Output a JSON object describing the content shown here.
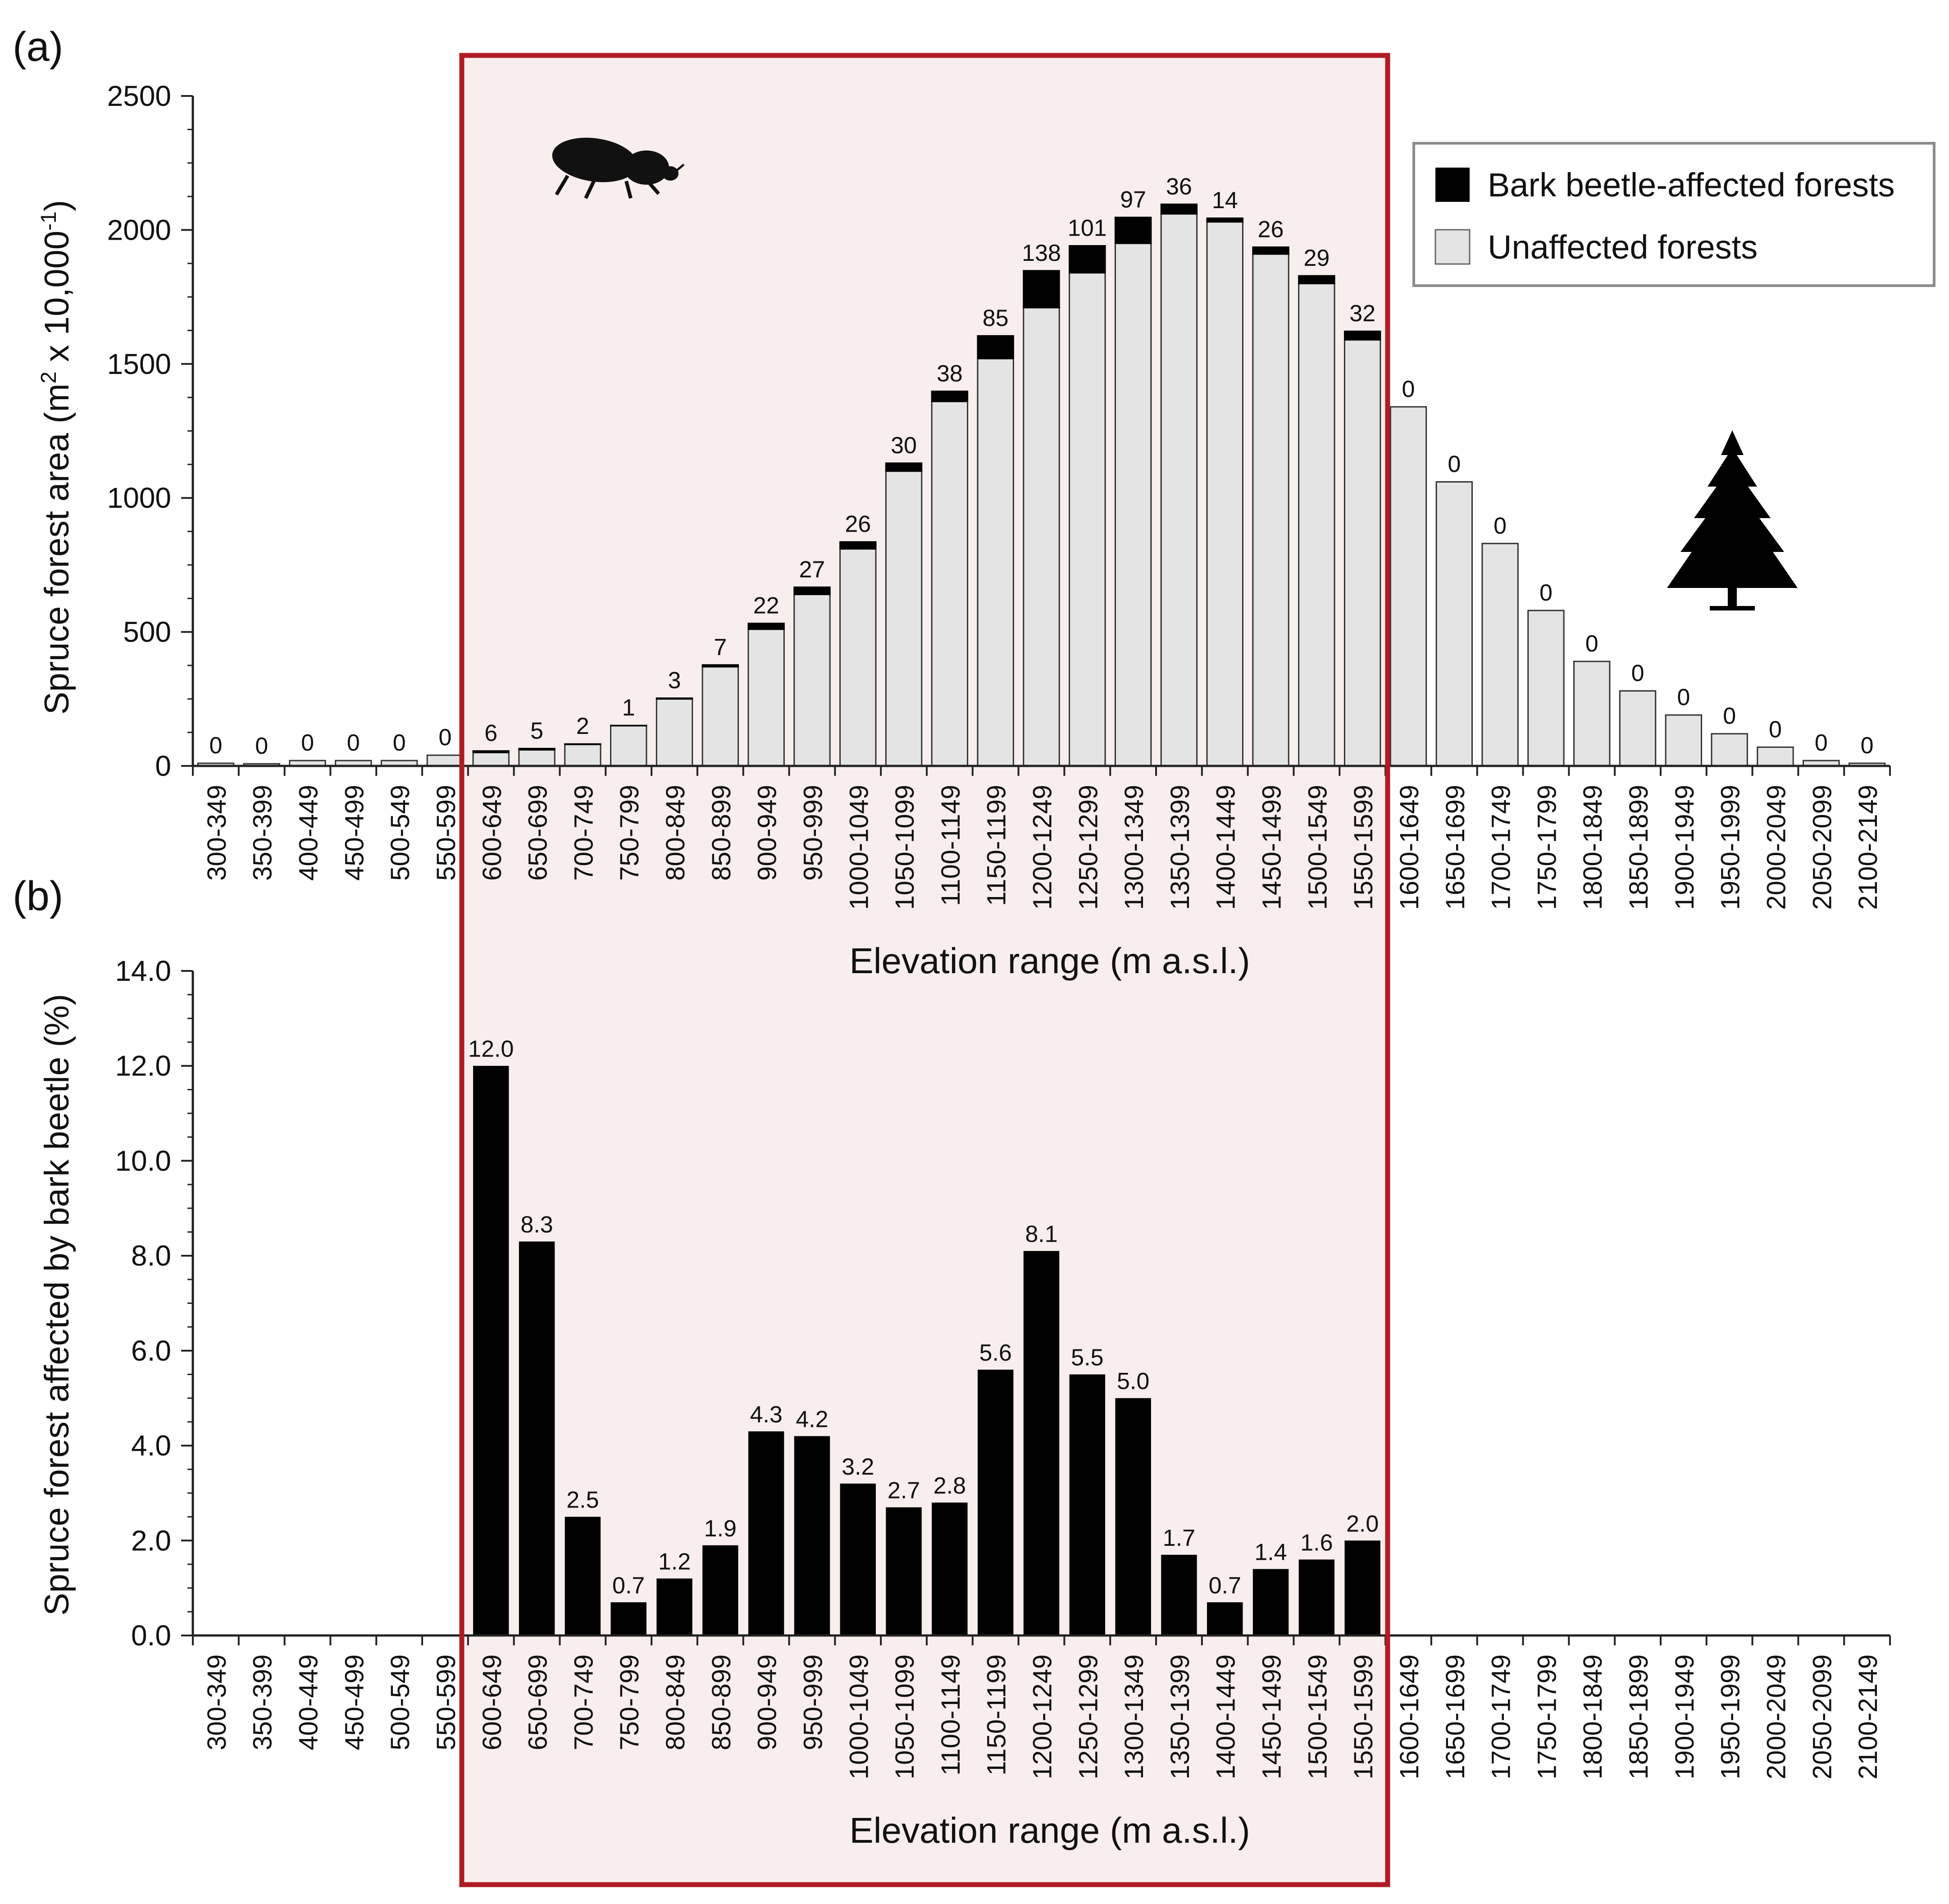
{
  "colors": {
    "affected": "#000000",
    "unaffected": "#e4e4e4",
    "highlight_fill": "#f8eeee",
    "highlight_border": "#b01c24",
    "axis": "#222222",
    "legend_border": "#8c8c8c"
  },
  "chart_data": [
    {
      "panel_label": "(a)",
      "type": "bar",
      "stacked": true,
      "categories": [
        "300-349",
        "350-399",
        "400-449",
        "450-499",
        "500-549",
        "550-599",
        "600-649",
        "650-699",
        "700-749",
        "750-799",
        "800-849",
        "850-899",
        "900-949",
        "950-999",
        "1000-1049",
        "1050-1099",
        "1100-1149",
        "1150-1199",
        "1200-1249",
        "1250-1299",
        "1300-1349",
        "1350-1399",
        "1400-1449",
        "1450-1499",
        "1500-1549",
        "1550-1599",
        "1600-1649",
        "1650-1699",
        "1700-1749",
        "1750-1799",
        "1800-1849",
        "1850-1899",
        "1900-1949",
        "1950-1999",
        "2000-2049",
        "2050-2099",
        "2100-2149"
      ],
      "series": [
        {
          "name": "Unaffected forests",
          "values": [
            10,
            8,
            20,
            20,
            20,
            40,
            50,
            60,
            80,
            150,
            250,
            370,
            510,
            640,
            810,
            1100,
            1360,
            1520,
            1710,
            1840,
            1950,
            2060,
            2030,
            1910,
            1800,
            1590,
            1340,
            1060,
            830,
            580,
            390,
            280,
            190,
            120,
            70,
            20,
            10
          ]
        },
        {
          "name": "Bark beetle-affected forests",
          "values": [
            0,
            0,
            0,
            0,
            0,
            0,
            6,
            5,
            2,
            1,
            3,
            7,
            22,
            27,
            26,
            30,
            38,
            85,
            138,
            101,
            97,
            36,
            14,
            26,
            29,
            32,
            0,
            0,
            0,
            0,
            0,
            0,
            0,
            0,
            0,
            0,
            0
          ]
        }
      ],
      "bar_labels": [
        "0",
        "0",
        "0",
        "0",
        "0",
        "0",
        "6",
        "5",
        "2",
        "1",
        "3",
        "7",
        "22",
        "27",
        "26",
        "30",
        "38",
        "85",
        "138",
        "101",
        "97",
        "36",
        "14",
        "26",
        "29",
        "32",
        "0",
        "0",
        "0",
        "0",
        "0",
        "0",
        "0",
        "0",
        "0",
        "0",
        "0"
      ],
      "ylabel_parts": [
        "Spruce forest area (m",
        "2",
        " x 10,000",
        "-1",
        ")"
      ],
      "xlabel": "Elevation range (m a.s.l.)",
      "yticks": [
        "0",
        "500",
        "1000",
        "1500",
        "2000",
        "2500"
      ],
      "ylim": [
        0,
        2500
      ],
      "legend": {
        "position": "top-right",
        "entries": [
          "Bark beetle-affected forests",
          "Unaffected forests"
        ]
      }
    },
    {
      "panel_label": "(b)",
      "type": "bar",
      "categories": [
        "300-349",
        "350-399",
        "400-449",
        "450-499",
        "500-549",
        "550-599",
        "600-649",
        "650-699",
        "700-749",
        "750-799",
        "800-849",
        "850-899",
        "900-949",
        "950-999",
        "1000-1049",
        "1050-1099",
        "1100-1149",
        "1150-1199",
        "1200-1249",
        "1250-1299",
        "1300-1349",
        "1350-1399",
        "1400-1449",
        "1450-1499",
        "1500-1549",
        "1550-1599",
        "1600-1649",
        "1650-1699",
        "1700-1749",
        "1750-1799",
        "1800-1849",
        "1850-1899",
        "1900-1949",
        "1950-1999",
        "2000-2049",
        "2050-2099",
        "2100-2149"
      ],
      "values": [
        null,
        null,
        null,
        null,
        null,
        null,
        12.0,
        8.3,
        2.5,
        0.7,
        1.2,
        1.9,
        4.3,
        4.2,
        3.2,
        2.7,
        2.8,
        5.6,
        8.1,
        5.5,
        5.0,
        1.7,
        0.7,
        1.4,
        1.6,
        2.0,
        null,
        null,
        null,
        null,
        null,
        null,
        null,
        null,
        null,
        null,
        null
      ],
      "bar_labels": [
        "",
        "",
        "",
        "",
        "",
        "",
        "12.0",
        "8.3",
        "2.5",
        "0.7",
        "1.2",
        "1.9",
        "4.3",
        "4.2",
        "3.2",
        "2.7",
        "2.8",
        "5.6",
        "8.1",
        "5.5",
        "5.0",
        "1.7",
        "0.7",
        "1.4",
        "1.6",
        "2.0",
        "",
        "",
        "",
        "",
        "",
        "",
        "",
        "",
        "",
        "",
        ""
      ],
      "ylabel": "Spruce forest affected by bark beetle (%)",
      "xlabel": "Elevation range (m a.s.l.)",
      "yticks": [
        "0.0",
        "2.0",
        "4.0",
        "6.0",
        "8.0",
        "10.0",
        "12.0",
        "14.0"
      ],
      "ylim": [
        0,
        14
      ]
    }
  ],
  "highlight_range": [
    "600-649",
    "1550-1599"
  ]
}
